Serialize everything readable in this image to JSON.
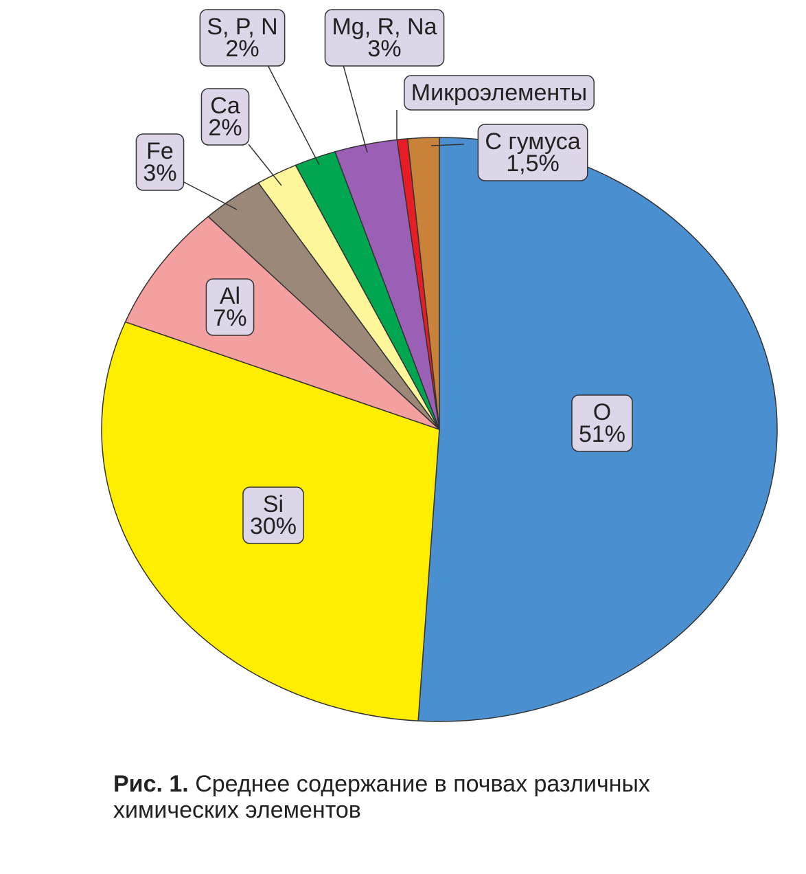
{
  "chart_data": {
    "type": "pie",
    "categories": [
      "O",
      "Si",
      "Al",
      "Fe",
      "Ca",
      "S, P, N",
      "Mg, R, Na",
      "Микроэлементы",
      "С гумуса"
    ],
    "values": [
      51,
      30,
      7,
      3,
      2,
      2,
      3,
      0.5,
      1.5
    ],
    "value_labels": [
      "51%",
      "30%",
      "7%",
      "3%",
      "2%",
      "2%",
      "3%",
      null,
      "1,5%"
    ],
    "colors": [
      "#4a8fcf",
      "#ffee00",
      "#f4a0a0",
      "#9b8878",
      "#fff59a",
      "#00a650",
      "#9b5fb5",
      "#e81c24",
      "#c9823a"
    ],
    "caption_label": "Рис. 1.",
    "caption": "Среднее содержание в почвах различных химических элементов"
  }
}
